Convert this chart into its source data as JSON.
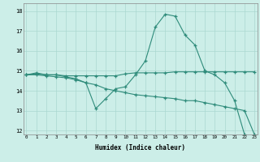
{
  "xlabel": "Humidex (Indice chaleur)",
  "x": [
    0,
    1,
    2,
    3,
    4,
    5,
    6,
    7,
    8,
    9,
    10,
    11,
    12,
    13,
    14,
    15,
    16,
    17,
    18,
    19,
    20,
    21,
    22,
    23
  ],
  "line1": [
    14.8,
    14.9,
    14.8,
    14.8,
    14.7,
    14.6,
    14.4,
    13.1,
    13.6,
    14.1,
    14.2,
    14.8,
    15.5,
    17.2,
    17.85,
    17.75,
    16.8,
    16.3,
    15.0,
    14.8,
    14.4,
    13.5,
    11.8,
    null
  ],
  "line2": [
    14.8,
    14.85,
    14.8,
    14.8,
    14.75,
    14.75,
    14.75,
    14.75,
    14.75,
    14.75,
    14.85,
    14.9,
    14.9,
    14.9,
    14.9,
    14.95,
    14.95,
    14.95,
    14.95,
    14.95,
    14.95,
    14.95,
    14.95,
    14.95
  ],
  "line3": [
    14.8,
    14.8,
    14.75,
    14.7,
    14.65,
    14.55,
    14.4,
    14.3,
    14.1,
    14.0,
    13.9,
    13.8,
    13.75,
    13.7,
    13.65,
    13.6,
    13.5,
    13.5,
    13.4,
    13.3,
    13.2,
    13.1,
    13.0,
    11.8
  ],
  "color": "#2e8b7a",
  "bg_color": "#cceee8",
  "grid_color": "#aad8d0",
  "ylim": [
    11.8,
    18.4
  ],
  "yticks": [
    12,
    13,
    14,
    15,
    16,
    17,
    18
  ],
  "xlim": [
    -0.3,
    23.3
  ],
  "xticks": [
    0,
    1,
    2,
    3,
    4,
    5,
    6,
    7,
    8,
    9,
    10,
    11,
    12,
    13,
    14,
    15,
    16,
    17,
    18,
    19,
    20,
    21,
    22,
    23
  ]
}
